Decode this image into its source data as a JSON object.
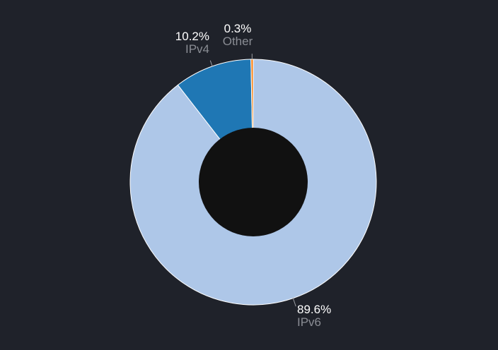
{
  "chart_data": {
    "type": "pie",
    "variant": "donut",
    "title": "",
    "series": [
      {
        "values": [
          89.6,
          10.2,
          0.3
        ],
        "categories": [
          "IPv6",
          "IPv4",
          "Other"
        ],
        "labels": [
          "89.6%",
          "10.2%",
          "0.3%"
        ],
        "colors": [
          "#aec7e8",
          "#1f77b4",
          "#ff7f0e"
        ]
      }
    ],
    "slice_border_color": "#ffffff",
    "center_color": "#111111",
    "background": "#1f222a",
    "legend": "none"
  }
}
